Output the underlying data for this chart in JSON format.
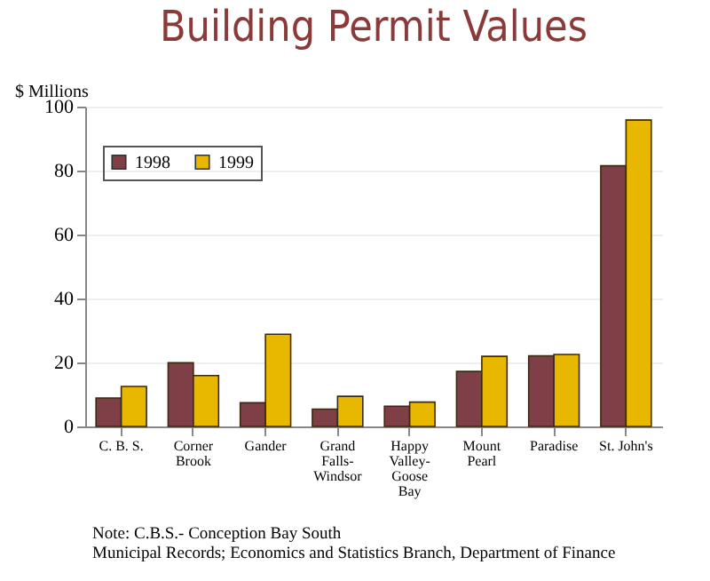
{
  "chart_data": {
    "type": "bar",
    "title": "Building Permit Values",
    "ylabel": "$ Millions",
    "categories": [
      "C. B. S.",
      "Corner Brook",
      "Gander",
      "Grand Falls-Windsor",
      "Happy Valley-Goose Bay",
      "Mount Pearl",
      "Paradise",
      "St. John's"
    ],
    "series": [
      {
        "name": "1998",
        "color": "#7f3f46",
        "values": [
          8.9,
          19.9,
          7.4,
          5.4,
          6.3,
          17.2,
          22.1,
          81.5
        ]
      },
      {
        "name": "1999",
        "color": "#e8b800",
        "values": [
          12.5,
          15.9,
          28.8,
          9.4,
          7.6,
          21.9,
          22.5,
          95.8
        ]
      }
    ],
    "ylim": [
      0,
      100
    ],
    "yticks": [
      0,
      20,
      40,
      60,
      80,
      100
    ],
    "grid": "y",
    "legend": "top left",
    "annotations": [
      "Note: C.B.S.- Conception Bay South",
      "Municipal Records; Economics and Statistics Branch, Department of Finance"
    ]
  }
}
